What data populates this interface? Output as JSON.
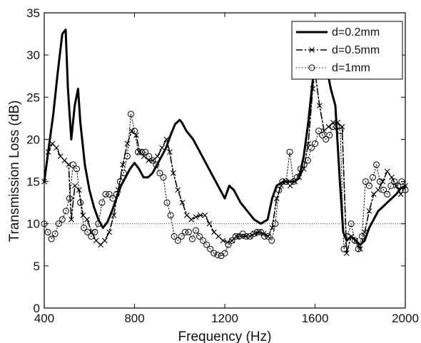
{
  "chart_data": {
    "type": "line",
    "title": "",
    "xlabel": "Frequency (Hz)",
    "ylabel": "Transmission Loss (dB)",
    "xlim": [
      400,
      2000
    ],
    "ylim": [
      0,
      35
    ],
    "x_ticks": [
      "400",
      "800",
      "1200",
      "1600",
      "2000"
    ],
    "y_ticks": [
      "0",
      "5",
      "10",
      "15",
      "20",
      "25",
      "30",
      "35"
    ],
    "legend_position": "top-right",
    "reference_line": 10,
    "series": [
      {
        "name": "d=0.2mm",
        "style": "solid",
        "marker": "none",
        "color": "#000000",
        "x": [
          400,
          420,
          440,
          460,
          480,
          495,
          505,
          520,
          535,
          550,
          560,
          580,
          600,
          620,
          640,
          660,
          680,
          700,
          720,
          740,
          760,
          780,
          800,
          820,
          840,
          860,
          880,
          900,
          920,
          940,
          960,
          980,
          1000,
          1010,
          1030,
          1060,
          1090,
          1120,
          1150,
          1180,
          1200,
          1220,
          1240,
          1270,
          1300,
          1330,
          1360,
          1390,
          1410,
          1430,
          1460,
          1490,
          1510,
          1530,
          1550,
          1570,
          1590,
          1610,
          1625,
          1640,
          1655,
          1670,
          1690,
          1710,
          1725,
          1740,
          1760,
          1780,
          1800,
          1820,
          1840,
          1860,
          1880,
          1900,
          1920,
          1940,
          1960,
          1980,
          2000
        ],
        "y": [
          15,
          19,
          23,
          28,
          32.5,
          33,
          26,
          20,
          24,
          26,
          22,
          17,
          14,
          12,
          10.5,
          9.5,
          10.2,
          11.5,
          13,
          14.5,
          15.5,
          16.5,
          17.2,
          16.5,
          15.5,
          15.5,
          16,
          17,
          18,
          19,
          20.5,
          21.8,
          22.3,
          22,
          21,
          20,
          18.5,
          17,
          15.5,
          14,
          13,
          14.5,
          14,
          12.5,
          11.5,
          10.5,
          10,
          10.5,
          13,
          14.5,
          15,
          15,
          15,
          15.5,
          18,
          22,
          27,
          30.5,
          31,
          29,
          28,
          26,
          24,
          15,
          9,
          8,
          8.5,
          8,
          7.5,
          8,
          9.5,
          10.5,
          11.5,
          12,
          12.5,
          13,
          13.5,
          14.2,
          14.5
        ]
      },
      {
        "name": "d=0.5mm",
        "style": "dashdot",
        "marker": "x",
        "color": "#000000",
        "x": [
          400,
          418,
          436,
          454,
          472,
          490,
          508,
          520,
          536,
          554,
          572,
          590,
          610,
          630,
          650,
          668,
          688,
          708,
          728,
          748,
          768,
          788,
          808,
          822,
          842,
          862,
          882,
          902,
          922,
          942,
          956,
          972,
          992,
          1012,
          1032,
          1052,
          1072,
          1092,
          1112,
          1132,
          1152,
          1172,
          1192,
          1212,
          1232,
          1252,
          1272,
          1292,
          1312,
          1332,
          1352,
          1372,
          1392,
          1410,
          1430,
          1450,
          1470,
          1490,
          1510,
          1530,
          1550,
          1570,
          1590,
          1600,
          1620,
          1640,
          1660,
          1680,
          1700,
          1720,
          1740,
          1760,
          1780,
          1800,
          1820,
          1840,
          1860,
          1880,
          1900,
          1920,
          1940,
          1960,
          1980,
          2000
        ],
        "y": [
          15,
          18.5,
          19.5,
          19,
          18,
          17.5,
          17,
          10.5,
          14.5,
          14,
          11,
          10.5,
          9,
          8,
          7.5,
          8,
          9,
          11,
          14,
          17,
          19.5,
          21,
          20.5,
          18.5,
          18,
          17.5,
          17.5,
          18,
          19,
          20,
          18.5,
          16,
          14,
          12.5,
          11,
          10.5,
          10.8,
          11,
          11,
          10,
          9,
          8.5,
          8,
          7.8,
          8,
          8.5,
          8.5,
          8.5,
          8.5,
          8.8,
          9,
          8.8,
          8.5,
          9.5,
          13,
          14.5,
          15,
          14.5,
          15,
          15.5,
          16.5,
          19.5,
          26,
          28,
          24,
          21,
          21.5,
          22,
          22,
          21.5,
          6.5,
          8.5,
          8,
          7,
          9,
          11.5,
          13.5,
          14,
          15,
          16.2,
          15.5,
          14.5,
          13.5,
          14.5
        ]
      },
      {
        "name": "d=1mm",
        "style": "dotted",
        "marker": "o",
        "color": "#000000",
        "x": [
          400,
          416,
          432,
          448,
          464,
          480,
          496,
          512,
          528,
          544,
          560,
          576,
          592,
          608,
          624,
          640,
          656,
          672,
          688,
          704,
          720,
          736,
          752,
          768,
          784,
          800,
          816,
          832,
          848,
          864,
          880,
          896,
          912,
          928,
          944,
          960,
          976,
          992,
          1008,
          1024,
          1040,
          1056,
          1072,
          1088,
          1104,
          1120,
          1136,
          1152,
          1168,
          1184,
          1200,
          1216,
          1232,
          1248,
          1264,
          1280,
          1296,
          1312,
          1328,
          1344,
          1360,
          1376,
          1392,
          1408,
          1424,
          1440,
          1456,
          1472,
          1488,
          1504,
          1520,
          1536,
          1552,
          1568,
          1584,
          1600,
          1616,
          1632,
          1648,
          1664,
          1680,
          1696,
          1712,
          1728,
          1744,
          1760,
          1776,
          1792,
          1808,
          1824,
          1840,
          1856,
          1872,
          1888,
          1904,
          1920,
          1936,
          1952,
          1968,
          1984,
          2000
        ],
        "y": [
          10,
          9,
          8.2,
          8.8,
          10,
          10.5,
          11.5,
          13,
          17,
          16.5,
          12.5,
          9.5,
          9,
          8.5,
          9,
          10,
          12.5,
          13.5,
          13.5,
          13,
          13.5,
          15,
          16,
          18,
          23,
          21,
          18.5,
          18.5,
          18.5,
          18,
          17.5,
          17,
          16,
          15.5,
          12.5,
          11,
          8.5,
          8,
          8.5,
          9,
          9,
          8.2,
          9.2,
          8.5,
          8,
          7.5,
          7,
          6.5,
          6.3,
          6.2,
          6.5,
          7.5,
          8,
          8.5,
          8.5,
          8.8,
          8.5,
          8.5,
          8.8,
          9,
          9,
          8.5,
          8.5,
          8,
          10,
          14,
          15,
          15,
          18.5,
          15,
          15.5,
          16.5,
          17,
          17.5,
          19,
          19.5,
          21,
          20.5,
          20,
          20.5,
          21.5,
          21.5,
          21,
          7,
          8.5,
          10,
          8,
          7,
          8.5,
          15,
          14.5,
          15.5,
          17,
          15,
          14,
          13.5,
          14.5,
          15,
          14.5,
          15,
          14
        ]
      }
    ]
  }
}
